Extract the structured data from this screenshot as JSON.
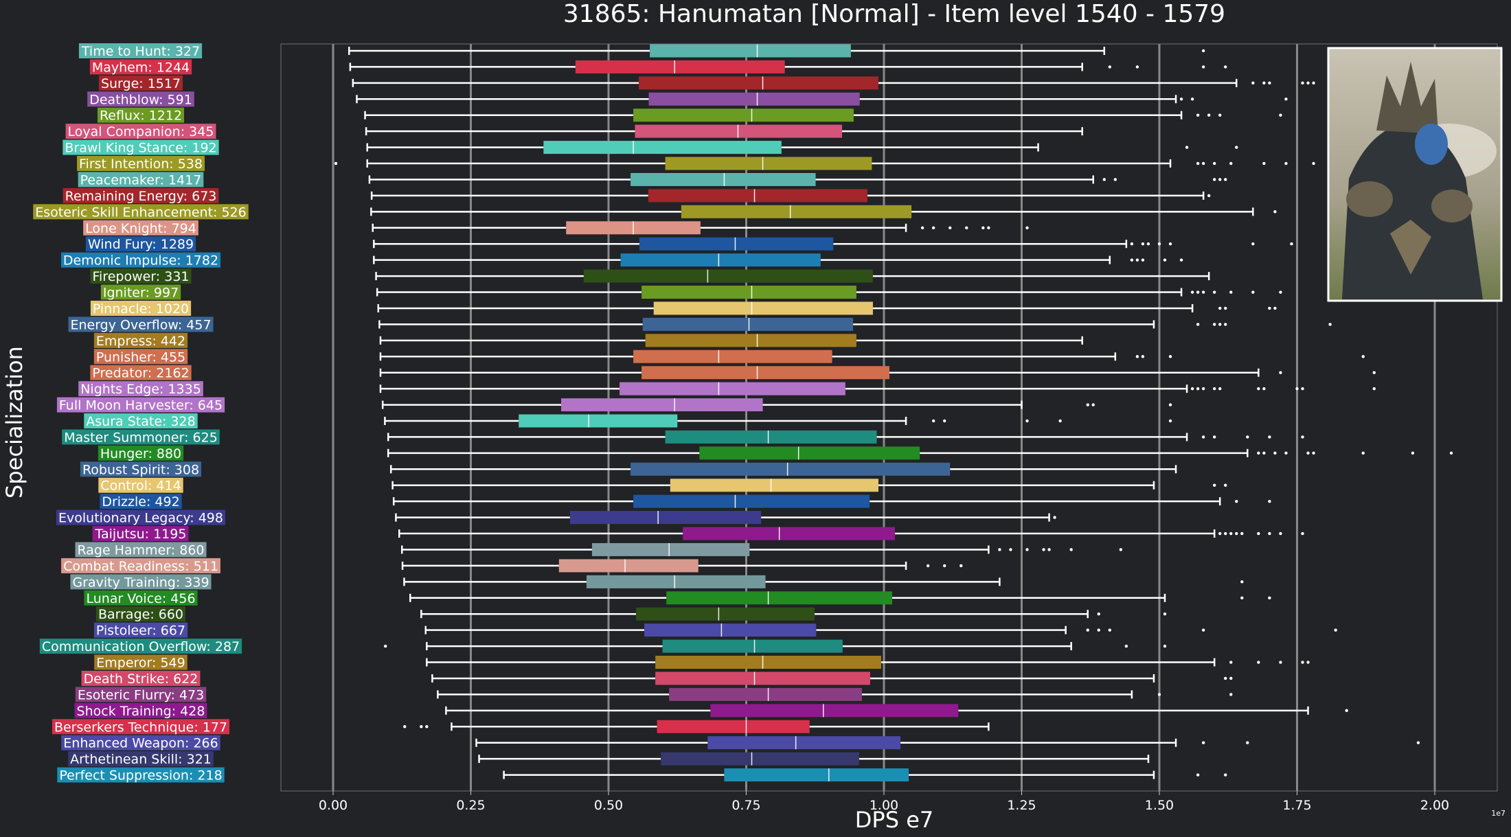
{
  "chart_data": {
    "type": "box",
    "title": "31865: Hanumatan [Normal] - Item level 1540 - 1579",
    "xlabel": "DPS e7",
    "ylabel": "Specialization",
    "x_offset_label": "1e7",
    "xlim": [
      -0.095,
      2.13
    ],
    "xticks": [
      0.0,
      0.25,
      0.5,
      0.75,
      1.0,
      1.25,
      1.5,
      1.75,
      2.0
    ],
    "xtick_labels": [
      "0.00",
      "0.25",
      "0.50",
      "0.75",
      "1.00",
      "1.25",
      "1.50",
      "1.75",
      "2.00"
    ],
    "grid": "vertical",
    "reference_line": 0.75,
    "categories": [
      {
        "label": "Time to Hunt: 327",
        "color": "#5ab4ac",
        "whisker_low": 0.029,
        "q1": 0.575,
        "median": 0.77,
        "q3": 0.94,
        "whisker_high": 1.4,
        "outliers": [
          1.58
        ]
      },
      {
        "label": "Mayhem: 1244",
        "color": "#d7304b",
        "whisker_low": 0.031,
        "q1": 0.44,
        "median": 0.62,
        "q3": 0.82,
        "whisker_high": 1.36,
        "outliers": [
          1.41,
          1.46,
          1.58,
          1.62
        ]
      },
      {
        "label": "Surge: 1517",
        "color": "#a3262a",
        "whisker_low": 0.036,
        "q1": 0.555,
        "median": 0.78,
        "q3": 0.99,
        "whisker_high": 1.64,
        "outliers": [
          1.67,
          1.69,
          1.7,
          1.76,
          1.77,
          1.78
        ]
      },
      {
        "label": "Deathblow: 591",
        "color": "#8a4fa0",
        "whisker_low": 0.043,
        "q1": 0.573,
        "median": 0.77,
        "q3": 0.956,
        "whisker_high": 1.53,
        "outliers": [
          1.54,
          1.56,
          1.73
        ]
      },
      {
        "label": "Reflux: 1212",
        "color": "#6a9b22",
        "whisker_low": 0.058,
        "q1": 0.545,
        "median": 0.76,
        "q3": 0.945,
        "whisker_high": 1.54,
        "outliers": [
          1.57,
          1.59,
          1.61,
          1.72
        ]
      },
      {
        "label": "Loyal Companion: 345",
        "color": "#d4547a",
        "whisker_low": 0.06,
        "q1": 0.548,
        "median": 0.735,
        "q3": 0.924,
        "whisker_high": 1.36,
        "outliers": []
      },
      {
        "label": "Brawl King Stance: 192",
        "color": "#4fcdb8",
        "whisker_low": 0.062,
        "q1": 0.382,
        "median": 0.545,
        "q3": 0.814,
        "whisker_high": 1.28,
        "outliers": [
          1.55,
          1.64
        ]
      },
      {
        "label": "First Intention: 538",
        "color": "#9c9a24",
        "whisker_low": 0.062,
        "q1": 0.603,
        "median": 0.78,
        "q3": 0.978,
        "whisker_high": 1.52,
        "outliers": [
          0.005,
          1.57,
          1.58,
          1.6,
          1.63,
          1.69,
          1.73,
          1.78
        ]
      },
      {
        "label": "Peacemaker: 1417",
        "color": "#5ab4ac",
        "whisker_low": 0.066,
        "q1": 0.54,
        "median": 0.71,
        "q3": 0.876,
        "whisker_high": 1.38,
        "outliers": [
          1.4,
          1.42,
          1.6,
          1.61,
          1.62
        ]
      },
      {
        "label": "Remaining Energy: 673",
        "color": "#a3262a",
        "whisker_low": 0.07,
        "q1": 0.572,
        "median": 0.765,
        "q3": 0.97,
        "whisker_high": 1.58,
        "outliers": [
          1.59
        ]
      },
      {
        "label": "Esoteric Skill Enhancement: 526",
        "color": "#9c9a24",
        "whisker_low": 0.069,
        "q1": 0.632,
        "median": 0.83,
        "q3": 1.05,
        "whisker_high": 1.67,
        "outliers": [
          1.71
        ]
      },
      {
        "label": "Lone Knight: 794",
        "color": "#dd9486",
        "whisker_low": 0.072,
        "q1": 0.423,
        "median": 0.545,
        "q3": 0.667,
        "whisker_high": 1.04,
        "outliers": [
          1.07,
          1.09,
          1.12,
          1.15,
          1.18,
          1.19,
          1.26
        ]
      },
      {
        "label": "Wind Fury: 1289",
        "color": "#1e56a0",
        "whisker_low": 0.074,
        "q1": 0.556,
        "median": 0.73,
        "q3": 0.908,
        "whisker_high": 1.44,
        "outliers": [
          1.45,
          1.47,
          1.48,
          1.5,
          1.52,
          1.67,
          1.74
        ]
      },
      {
        "label": "Demonic Impulse: 1782",
        "color": "#1d7eb4",
        "whisker_low": 0.074,
        "q1": 0.522,
        "median": 0.7,
        "q3": 0.885,
        "whisker_high": 1.41,
        "outliers": [
          1.45,
          1.46,
          1.47,
          1.51,
          1.54
        ]
      },
      {
        "label": "Firepower: 331",
        "color": "#2e5017",
        "whisker_low": 0.078,
        "q1": 0.455,
        "median": 0.68,
        "q3": 0.98,
        "whisker_high": 1.59,
        "outliers": []
      },
      {
        "label": "Igniter: 997",
        "color": "#6a9b22",
        "whisker_low": 0.08,
        "q1": 0.56,
        "median": 0.76,
        "q3": 0.95,
        "whisker_high": 1.54,
        "outliers": [
          1.56,
          1.57,
          1.58,
          1.6,
          1.63,
          1.67,
          1.72
        ]
      },
      {
        "label": "Pinnacle: 1020",
        "color": "#e6c66e",
        "whisker_low": 0.082,
        "q1": 0.582,
        "median": 0.76,
        "q3": 0.98,
        "whisker_high": 1.56,
        "outliers": [
          1.61,
          1.62,
          1.7,
          1.71
        ]
      },
      {
        "label": "Energy Overflow: 457",
        "color": "#3c6595",
        "whisker_low": 0.084,
        "q1": 0.562,
        "median": 0.755,
        "q3": 0.944,
        "whisker_high": 1.49,
        "outliers": [
          1.57,
          1.6,
          1.61,
          1.62,
          1.81
        ]
      },
      {
        "label": "Empress: 442",
        "color": "#a37c20",
        "whisker_low": 0.086,
        "q1": 0.567,
        "median": 0.77,
        "q3": 0.95,
        "whisker_high": 1.36,
        "outliers": []
      },
      {
        "label": "Punisher: 455",
        "color": "#d06e4e",
        "whisker_low": 0.086,
        "q1": 0.545,
        "median": 0.7,
        "q3": 0.906,
        "whisker_high": 1.42,
        "outliers": [
          1.46,
          1.47,
          1.52,
          1.87
        ]
      },
      {
        "label": "Predator: 2162",
        "color": "#d06e4e",
        "whisker_low": 0.086,
        "q1": 0.56,
        "median": 0.77,
        "q3": 1.01,
        "whisker_high": 1.68,
        "outliers": [
          1.72,
          1.89
        ]
      },
      {
        "label": "Nights Edge: 1335",
        "color": "#b274c8",
        "whisker_low": 0.086,
        "q1": 0.52,
        "median": 0.7,
        "q3": 0.93,
        "whisker_high": 1.55,
        "outliers": [
          1.56,
          1.57,
          1.58,
          1.6,
          1.61,
          1.68,
          1.69,
          1.75,
          1.76,
          1.89
        ]
      },
      {
        "label": "Full Moon Harvester: 645",
        "color": "#b274c8",
        "whisker_low": 0.09,
        "q1": 0.414,
        "median": 0.62,
        "q3": 0.78,
        "whisker_high": 1.25,
        "outliers": [
          1.37,
          1.38,
          1.52
        ]
      },
      {
        "label": "Asura State: 328",
        "color": "#4fcdb8",
        "whisker_low": 0.094,
        "q1": 0.337,
        "median": 0.464,
        "q3": 0.625,
        "whisker_high": 1.04,
        "outliers": [
          1.09,
          1.11,
          1.26,
          1.32,
          1.52
        ]
      },
      {
        "label": "Master Summoner: 625",
        "color": "#1e8c7f",
        "whisker_low": 0.1,
        "q1": 0.603,
        "median": 0.79,
        "q3": 0.987,
        "whisker_high": 1.55,
        "outliers": [
          1.58,
          1.6,
          1.66,
          1.7,
          1.76
        ]
      },
      {
        "label": "Hunger: 880",
        "color": "#228b22",
        "whisker_low": 0.1,
        "q1": 0.665,
        "median": 0.845,
        "q3": 1.065,
        "whisker_high": 1.66,
        "outliers": [
          1.68,
          1.69,
          1.71,
          1.73,
          1.77,
          1.78,
          1.87,
          1.96,
          2.03
        ]
      },
      {
        "label": "Robust Spirit: 308",
        "color": "#3c6595",
        "whisker_low": 0.105,
        "q1": 0.54,
        "median": 0.825,
        "q3": 1.12,
        "whisker_high": 1.53,
        "outliers": []
      },
      {
        "label": "Control: 414",
        "color": "#e6c66e",
        "whisker_low": 0.108,
        "q1": 0.612,
        "median": 0.795,
        "q3": 0.99,
        "whisker_high": 1.49,
        "outliers": [
          1.6,
          1.62
        ]
      },
      {
        "label": "Drizzle: 492",
        "color": "#1e56a0",
        "whisker_low": 0.11,
        "q1": 0.545,
        "median": 0.73,
        "q3": 0.974,
        "whisker_high": 1.61,
        "outliers": [
          1.64,
          1.7
        ]
      },
      {
        "label": "Evolutionary Legacy: 498",
        "color": "#3d3b8d",
        "whisker_low": 0.114,
        "q1": 0.43,
        "median": 0.59,
        "q3": 0.777,
        "whisker_high": 1.3,
        "outliers": [
          1.31
        ]
      },
      {
        "label": "Taijutsu: 1195",
        "color": "#8e1a8e",
        "whisker_low": 0.12,
        "q1": 0.635,
        "median": 0.81,
        "q3": 1.02,
        "whisker_high": 1.6,
        "outliers": [
          1.61,
          1.62,
          1.63,
          1.64,
          1.65,
          1.68,
          1.7,
          1.72,
          1.76
        ]
      },
      {
        "label": "Rage Hammer: 860",
        "color": "#7f9aa0",
        "whisker_low": 0.125,
        "q1": 0.47,
        "median": 0.61,
        "q3": 0.756,
        "whisker_high": 1.19,
        "outliers": [
          1.21,
          1.23,
          1.26,
          1.29,
          1.3,
          1.34,
          1.43
        ]
      },
      {
        "label": "Combat Readiness: 511",
        "color": "#d89a8e",
        "whisker_low": 0.126,
        "q1": 0.41,
        "median": 0.53,
        "q3": 0.663,
        "whisker_high": 1.04,
        "outliers": [
          1.08,
          1.11,
          1.14
        ]
      },
      {
        "label": "Gravity Training: 339",
        "color": "#74999c",
        "whisker_low": 0.129,
        "q1": 0.46,
        "median": 0.62,
        "q3": 0.785,
        "whisker_high": 1.21,
        "outliers": [
          1.65
        ]
      },
      {
        "label": "Lunar Voice: 456",
        "color": "#228b22",
        "whisker_low": 0.14,
        "q1": 0.605,
        "median": 0.79,
        "q3": 1.015,
        "whisker_high": 1.51,
        "outliers": [
          1.65,
          1.7
        ]
      },
      {
        "label": "Barrage: 660",
        "color": "#2e5017",
        "whisker_low": 0.16,
        "q1": 0.55,
        "median": 0.7,
        "q3": 0.874,
        "whisker_high": 1.37,
        "outliers": [
          1.39,
          1.51
        ]
      },
      {
        "label": "Pistoleer: 667",
        "color": "#4b4aa6",
        "whisker_low": 0.168,
        "q1": 0.565,
        "median": 0.705,
        "q3": 0.877,
        "whisker_high": 1.33,
        "outliers": [
          1.37,
          1.39,
          1.41,
          1.58,
          1.82
        ]
      },
      {
        "label": "Communication Overflow: 287",
        "color": "#1e8c7f",
        "whisker_low": 0.17,
        "q1": 0.598,
        "median": 0.765,
        "q3": 0.925,
        "whisker_high": 1.34,
        "outliers": [
          0.095,
          1.44,
          1.51
        ]
      },
      {
        "label": "Emperor: 549",
        "color": "#a37c20",
        "whisker_low": 0.17,
        "q1": 0.585,
        "median": 0.78,
        "q3": 0.995,
        "whisker_high": 1.6,
        "outliers": [
          1.63,
          1.68,
          1.72,
          1.76,
          1.77
        ]
      },
      {
        "label": "Death Strike: 622",
        "color": "#d4486a",
        "whisker_low": 0.18,
        "q1": 0.585,
        "median": 0.765,
        "q3": 0.975,
        "whisker_high": 1.49,
        "outliers": [
          1.62,
          1.63
        ]
      },
      {
        "label": "Esoteric Flurry: 473",
        "color": "#8a3e82",
        "whisker_low": 0.19,
        "q1": 0.61,
        "median": 0.79,
        "q3": 0.96,
        "whisker_high": 1.45,
        "outliers": [
          1.5,
          1.63
        ]
      },
      {
        "label": "Shock Training: 428",
        "color": "#8e1a8e",
        "whisker_low": 0.205,
        "q1": 0.685,
        "median": 0.89,
        "q3": 1.135,
        "whisker_high": 1.77,
        "outliers": [
          1.84
        ]
      },
      {
        "label": "Berserkers Technique: 177",
        "color": "#d7304b",
        "whisker_low": 0.215,
        "q1": 0.588,
        "median": 0.75,
        "q3": 0.865,
        "whisker_high": 1.19,
        "outliers": [
          0.13,
          0.16,
          0.17
        ]
      },
      {
        "label": "Enhanced Weapon: 266",
        "color": "#4b4aa6",
        "whisker_low": 0.26,
        "q1": 0.68,
        "median": 0.84,
        "q3": 1.03,
        "whisker_high": 1.53,
        "outliers": [
          1.58,
          1.66,
          1.97
        ]
      },
      {
        "label": "Arthetinean Skill: 321",
        "color": "#36386e",
        "whisker_low": 0.265,
        "q1": 0.595,
        "median": 0.76,
        "q3": 0.955,
        "whisker_high": 1.48,
        "outliers": []
      },
      {
        "label": "Perfect Suppression: 218",
        "color": "#1a8fb4",
        "whisker_low": 0.31,
        "q1": 0.71,
        "median": 0.9,
        "q3": 1.045,
        "whisker_high": 1.49,
        "outliers": [
          1.57,
          1.62
        ]
      }
    ]
  }
}
